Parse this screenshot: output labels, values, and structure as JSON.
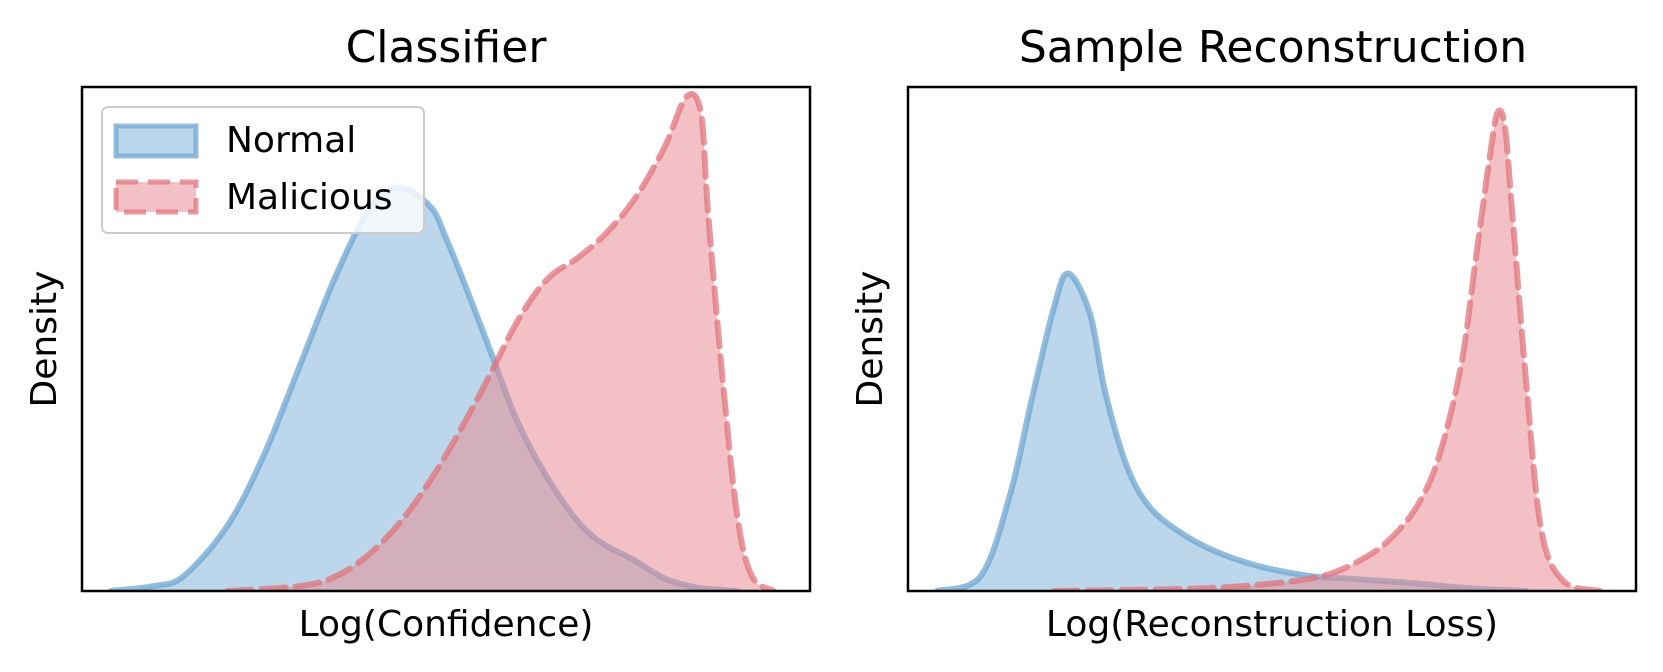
{
  "colors": {
    "normal": "#7fb2d9",
    "normal_stroke": "#6fa6d1",
    "malicious": "#e8888f",
    "malicious_stroke": "#e0747c"
  },
  "chart_data": [
    {
      "type": "area",
      "title": "Classifier",
      "xlabel": "Log(Confidence)",
      "ylabel": "Density",
      "x_range": [
        0,
        1
      ],
      "y_range": [
        0,
        1.0
      ],
      "ticks_visible": false,
      "grid": false,
      "legend": {
        "position": "top-left",
        "entries": [
          "Normal",
          "Malicious"
        ]
      },
      "series": [
        {
          "name": "Normal",
          "line_style": "solid",
          "x": [
            0.04,
            0.1,
            0.14,
            0.2,
            0.25,
            0.3,
            0.35,
            0.4,
            0.44,
            0.48,
            0.5,
            0.52,
            0.56,
            0.6,
            0.65,
            0.7,
            0.76,
            0.8,
            0.84,
            0.88,
            0.9
          ],
          "y": [
            0.0,
            0.01,
            0.03,
            0.13,
            0.27,
            0.45,
            0.63,
            0.77,
            0.8,
            0.76,
            0.7,
            0.63,
            0.48,
            0.33,
            0.2,
            0.11,
            0.06,
            0.025,
            0.008,
            0.002,
            0.0
          ]
        },
        {
          "name": "Malicious",
          "line_style": "dashed",
          "x": [
            0.2,
            0.3,
            0.35,
            0.4,
            0.45,
            0.5,
            0.55,
            0.6,
            0.64,
            0.68,
            0.72,
            0.76,
            0.8,
            0.83,
            0.85,
            0.86,
            0.88,
            0.9,
            0.92,
            0.95
          ],
          "y": [
            0.0,
            0.01,
            0.03,
            0.08,
            0.16,
            0.27,
            0.4,
            0.54,
            0.62,
            0.66,
            0.71,
            0.78,
            0.88,
            0.98,
            0.95,
            0.75,
            0.42,
            0.15,
            0.03,
            0.0
          ]
        }
      ]
    },
    {
      "type": "area",
      "title": "Sample Reconstruction",
      "xlabel": "Log(Reconstruction Loss)",
      "ylabel": "Density",
      "x_range": [
        0,
        1
      ],
      "y_range": [
        0,
        1.0
      ],
      "ticks_visible": false,
      "grid": false,
      "series": [
        {
          "name": "Normal",
          "line_style": "solid",
          "x": [
            0.04,
            0.1,
            0.14,
            0.17,
            0.2,
            0.22,
            0.25,
            0.27,
            0.3,
            0.33,
            0.37,
            0.42,
            0.48,
            0.55,
            0.6,
            0.65,
            0.7,
            0.75,
            0.8,
            0.85
          ],
          "y": [
            0.0,
            0.03,
            0.19,
            0.38,
            0.56,
            0.63,
            0.55,
            0.4,
            0.25,
            0.17,
            0.12,
            0.08,
            0.05,
            0.03,
            0.025,
            0.02,
            0.015,
            0.008,
            0.003,
            0.0
          ]
        },
        {
          "name": "Malicious",
          "line_style": "dashed",
          "x": [
            0.2,
            0.4,
            0.5,
            0.57,
            0.62,
            0.66,
            0.7,
            0.73,
            0.76,
            0.78,
            0.8,
            0.81,
            0.82,
            0.83,
            0.85,
            0.87,
            0.9,
            0.95
          ],
          "y": [
            0.0,
            0.005,
            0.015,
            0.03,
            0.06,
            0.1,
            0.17,
            0.27,
            0.45,
            0.66,
            0.87,
            0.95,
            0.92,
            0.75,
            0.4,
            0.12,
            0.02,
            0.0
          ]
        }
      ]
    }
  ]
}
